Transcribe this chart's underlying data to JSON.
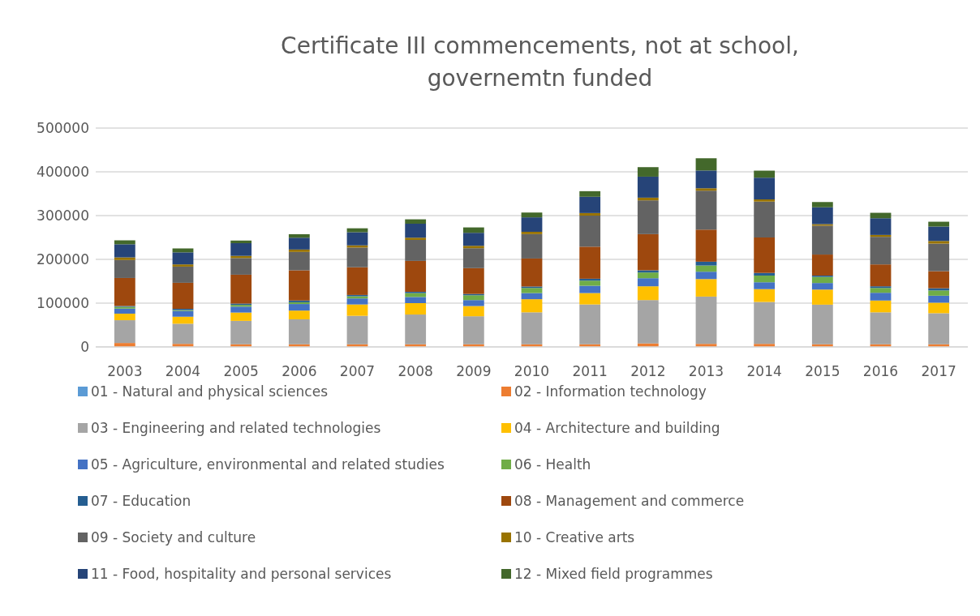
{
  "chart_data": {
    "type": "bar",
    "title": "Certificate III commencements, not at school, governemtn funded",
    "stacked": true,
    "categories": [
      "2003",
      "2004",
      "2005",
      "2006",
      "2007",
      "2008",
      "2009",
      "2010",
      "2011",
      "2012",
      "2013",
      "2014",
      "2015",
      "2016",
      "2017"
    ],
    "series": [
      {
        "name": "01 - Natural and physical sciences",
        "color": "#5b9bd5",
        "values": [
          null,
          null,
          null,
          null,
          null,
          null,
          null,
          null,
          null,
          null,
          null,
          null,
          null,
          null,
          null
        ]
      },
      {
        "name": "02 - Information technology",
        "color": "#ed7d31",
        "values": [
          9000,
          7000,
          6000,
          6000,
          6000,
          6000,
          6000,
          6000,
          6000,
          8000,
          7000,
          7000,
          6000,
          6000,
          6000
        ]
      },
      {
        "name": "03 - Engineering and related technologies",
        "color": "#a5a5a5",
        "values": [
          52000,
          46000,
          53500,
          57000,
          65000,
          68000,
          64000,
          73000,
          91000,
          99000,
          108000,
          95700,
          90500,
          73000,
          71000
        ]
      },
      {
        "name": "04 - Architecture and building",
        "color": "#ffc000",
        "values": [
          15000,
          16000,
          19000,
          20000,
          26000,
          26000,
          23400,
          30000,
          26000,
          31500,
          40000,
          29300,
          34500,
          27000,
          24000
        ]
      },
      {
        "name": "05 - Agriculture, environmental and related studies",
        "color": "#4472c4",
        "values": [
          11500,
          13000,
          13500,
          15000,
          13700,
          14000,
          13600,
          14000,
          16700,
          18500,
          16800,
          15700,
          15000,
          17700,
          16000
        ]
      },
      {
        "name": "06 - Health",
        "color": "#70ad47",
        "values": [
          4000,
          2000,
          4000,
          4000,
          5000,
          9000,
          11000,
          11700,
          11700,
          13000,
          14200,
          15300,
          14000,
          11000,
          12000
        ]
      },
      {
        "name": "07 - Education",
        "color": "#255e91",
        "values": [
          2000,
          3000,
          3000,
          4000,
          3000,
          3000,
          3000,
          3300,
          4400,
          5000,
          8700,
          6000,
          3000,
          3800,
          5000
        ]
      },
      {
        "name": "08 - Management and commerce",
        "color": "#9e480e",
        "values": [
          64000,
          59500,
          66000,
          69000,
          63300,
          70500,
          59000,
          64000,
          73200,
          82700,
          73300,
          81000,
          48000,
          50000,
          39000
        ]
      },
      {
        "name": "09 - Society and culture",
        "color": "#636363",
        "values": [
          41000,
          37000,
          38000,
          42000,
          45000,
          48000,
          45500,
          55700,
          71000,
          77100,
          89000,
          82000,
          66000,
          63000,
          63000
        ]
      },
      {
        "name": "10 - Creative arts",
        "color": "#997300",
        "values": [
          6000,
          5000,
          5000,
          5500,
          5000,
          5000,
          5500,
          5300,
          5800,
          6200,
          5500,
          5000,
          3500,
          4300,
          6000
        ]
      },
      {
        "name": "11 - Food, hospitality and personal services",
        "color": "#264478",
        "values": [
          30000,
          27500,
          29000,
          27000,
          30000,
          32000,
          29700,
          33000,
          37200,
          48000,
          40500,
          49600,
          38500,
          38200,
          33000
        ]
      },
      {
        "name": "12 - Mixed field programmes",
        "color": "#43682b",
        "values": [
          9000,
          9000,
          6000,
          8000,
          9000,
          10000,
          12300,
          11000,
          12800,
          21700,
          28000,
          16100,
          12000,
          12400,
          11000
        ]
      }
    ],
    "ylim": [
      0,
      500000
    ],
    "yticks": [
      0,
      100000,
      200000,
      300000,
      400000,
      500000
    ],
    "grid": "y",
    "legend": "bottom"
  }
}
